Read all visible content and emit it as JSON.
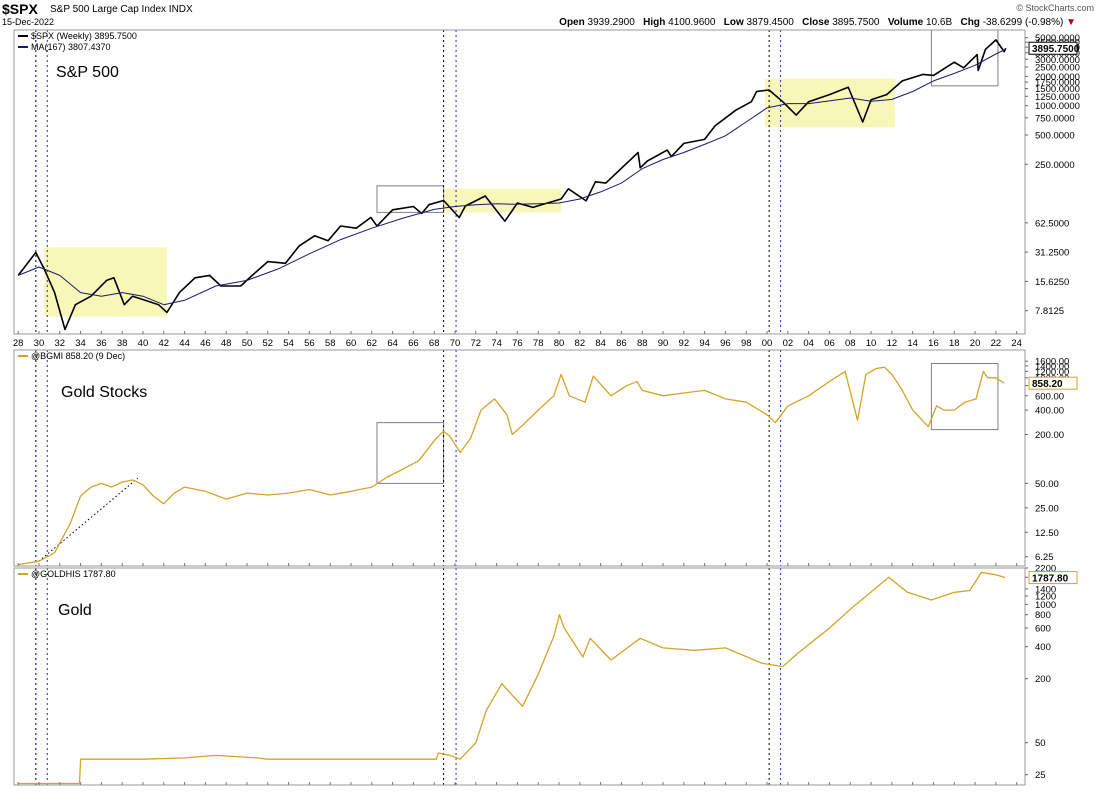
{
  "header": {
    "symbol": "$SPX",
    "name": "S&P 500 Large Cap Index",
    "exchange": "INDX",
    "date": "15-Dec-2022",
    "brand": "© StockCharts.com",
    "open_label": "Open",
    "open": "3939.2900",
    "high_label": "High",
    "high": "4100.9600",
    "low_label": "Low",
    "low": "3879.4500",
    "close_label": "Close",
    "close": "3895.7500",
    "volume_label": "Volume",
    "volume": "10.6B",
    "chg_label": "Chg",
    "chg": "-38.6299 (-0.98%)",
    "chg_arrow": "▼"
  },
  "colors": {
    "spx": "#000000",
    "ma": "#1a1a6e",
    "gold": "#d4a32a",
    "highlight": "#f6f6b0",
    "box": "#808080",
    "vline_black": "#000000",
    "vline_blue": "#2030c0"
  },
  "chart_data": [
    {
      "type": "line",
      "panel": "spx",
      "title": "S&P 500",
      "legend": [
        "$SPX (Weekly) 3895.7500",
        "MA(167) 3807.4370"
      ],
      "scale": "log",
      "ylim": [
        4.5,
        6000
      ],
      "yticks": [
        5000,
        4500,
        4000,
        3500,
        3000,
        2500,
        2000,
        1750,
        1500,
        1250,
        1000,
        750,
        500,
        250,
        62.5,
        31.25,
        15.625,
        7.8125
      ],
      "ytick_labels": [
        "5000.0000",
        "4500.0000",
        "4000.0000",
        "3500.0000",
        "3000.0000",
        "2500.0000",
        "2000.0000",
        "1750.0000",
        "1500.0000",
        "1250.0000",
        "1000.0000",
        "750.0000",
        "500.0000",
        "250.0000",
        "62.5000",
        "31.2500",
        "15.6250",
        "7.8125"
      ],
      "last_value": "3895.7500",
      "series": [
        {
          "name": "$SPX (Weekly)",
          "x": [
            1928,
            1929.7,
            1930.5,
            1931.5,
            1932.5,
            1933.5,
            1935,
            1936.5,
            1937.2,
            1938.2,
            1939,
            1940.2,
            1941.5,
            1942.3,
            1943.5,
            1945,
            1946.4,
            1947.5,
            1949.4,
            1950.5,
            1952,
            1953.7,
            1955,
            1956.5,
            1957.8,
            1959,
            1960.5,
            1961.9,
            1962.5,
            1964,
            1966,
            1966.8,
            1967.5,
            1968.9,
            1970.4,
            1971,
            1972.9,
            1974.8,
            1976,
            1977.5,
            1978.2,
            1980.2,
            1980.9,
            1982.6,
            1983.5,
            1984.5,
            1987.6,
            1987.8,
            1988.5,
            1990.4,
            1990.8,
            1992,
            1994,
            1995,
            1997,
            1998.5,
            1999,
            2000.2,
            2001.5,
            2002.8,
            2004,
            2006,
            2007.8,
            2009.2,
            2010,
            2011.5,
            2013,
            2015,
            2016,
            2018,
            2018.9,
            2020.2,
            2020.3,
            2021,
            2022,
            2022.8,
            2022.95
          ],
          "values": [
            18,
            31,
            21,
            12,
            5,
            9,
            11,
            16,
            17,
            9,
            11,
            10,
            9,
            7.5,
            12,
            17,
            18,
            14,
            14,
            18,
            25,
            24,
            36,
            46,
            41,
            58,
            55,
            71,
            58,
            85,
            92,
            78,
            96,
            106,
            71,
            93,
            118,
            65,
            100,
            90,
            95,
            110,
            140,
            105,
            165,
            160,
            330,
            230,
            270,
            350,
            300,
            410,
            450,
            620,
            900,
            1100,
            1400,
            1450,
            1100,
            800,
            1100,
            1300,
            1550,
            680,
            1150,
            1300,
            1800,
            2100,
            2050,
            2800,
            2450,
            3350,
            2300,
            3800,
            4750,
            3600,
            3896
          ]
        },
        {
          "name": "MA(167)",
          "x": [
            1928,
            1930,
            1932,
            1934,
            1936,
            1938,
            1940,
            1942,
            1944,
            1947,
            1950,
            1953,
            1956,
            1959,
            1962,
            1965,
            1968,
            1970,
            1972,
            1974,
            1976,
            1978,
            1980,
            1982,
            1984,
            1986,
            1988,
            1990,
            1992,
            1994,
            1996,
            1998,
            2000,
            2002,
            2004,
            2006,
            2008,
            2010,
            2012,
            2014,
            2016,
            2018,
            2020,
            2022,
            2022.95
          ],
          "values": [
            18,
            22,
            18,
            12,
            11,
            12,
            11,
            9,
            10,
            14,
            16,
            21,
            30,
            42,
            55,
            70,
            86,
            92,
            96,
            98,
            97,
            98,
            100,
            110,
            130,
            160,
            225,
            280,
            330,
            400,
            490,
            680,
            950,
            1050,
            1050,
            1120,
            1200,
            1110,
            1160,
            1400,
            1800,
            2150,
            2600,
            3400,
            3807
          ]
        }
      ],
      "highlights": [
        {
          "x": [
            1930.5,
            1942.3
          ],
          "y": [
            6.8,
            35
          ],
          "style": "yellow"
        },
        {
          "x": [
            1968.9,
            1980.2
          ],
          "y": [
            80,
            140
          ],
          "style": "yellow"
        },
        {
          "x": [
            1999.8,
            2012.3
          ],
          "y": [
            600,
            1900
          ],
          "style": "yellow"
        },
        {
          "x": [
            1962.5,
            1968.9
          ],
          "y": [
            80,
            150
          ],
          "style": "box"
        },
        {
          "x": [
            2015.8,
            2022.2
          ],
          "y": [
            1600,
            6000
          ],
          "style": "box"
        }
      ]
    },
    {
      "type": "line",
      "panel": "gold_stocks",
      "title": "Gold Stocks",
      "legend": [
        "@BGMI 858.20 (9 Dec)"
      ],
      "scale": "log",
      "ylim": [
        4.8,
        2200
      ],
      "yticks": [
        1600,
        1400,
        1200,
        1000,
        800,
        600,
        400,
        200,
        50,
        25,
        12.5,
        6.25
      ],
      "ytick_labels": [
        "1600.00",
        "1400.00",
        "1200.00",
        "1000.00",
        "800.00",
        "600.00",
        "400.00",
        "200.00",
        "50.00",
        "25.00",
        "12.50",
        "6.25"
      ],
      "last_value": "858.20",
      "series": [
        {
          "name": "@BGMI",
          "x": [
            1928,
            1930,
            1931.5,
            1933,
            1934,
            1935,
            1936,
            1937,
            1938,
            1939,
            1940,
            1941,
            1942,
            1943,
            1944,
            1946,
            1948,
            1950,
            1952,
            1954,
            1956,
            1958,
            1960,
            1962,
            1963.5,
            1965,
            1966.5,
            1968.2,
            1968.9,
            1969.5,
            1970.5,
            1971.5,
            1972.5,
            1973.8,
            1975,
            1975.5,
            1976.5,
            1978,
            1979.5,
            1980.2,
            1981,
            1982.5,
            1983.3,
            1985,
            1986.5,
            1987.5,
            1988,
            1990,
            1992,
            1994,
            1996,
            1998,
            2000,
            2000.8,
            2002,
            2004,
            2006,
            2007.5,
            2008.7,
            2009.5,
            2010.5,
            2011.3,
            2012,
            2013,
            2014,
            2015.5,
            2016.3,
            2017,
            2018,
            2019,
            2020.1,
            2020.8,
            2021.2,
            2022,
            2022.8
          ],
          "values": [
            5,
            5.5,
            7,
            16,
            35,
            45,
            50,
            45,
            52,
            55,
            48,
            35,
            28,
            38,
            45,
            40,
            32,
            38,
            36,
            38,
            42,
            36,
            40,
            45,
            60,
            75,
            95,
            180,
            220,
            190,
            120,
            180,
            400,
            550,
            350,
            200,
            260,
            400,
            600,
            1100,
            600,
            500,
            1050,
            600,
            800,
            900,
            700,
            600,
            650,
            700,
            550,
            500,
            350,
            280,
            450,
            600,
            900,
            1200,
            300,
            1100,
            1300,
            1350,
            1100,
            700,
            400,
            250,
            450,
            400,
            400,
            500,
            550,
            1200,
            1000,
            1000,
            858
          ]
        }
      ],
      "trendlines": [
        {
          "x": [
            1930,
            1939.5
          ],
          "y": [
            5.5,
            58
          ],
          "style": "dotted"
        }
      ],
      "highlights": [
        {
          "x": [
            1962.5,
            1968.9
          ],
          "y": [
            50,
            280
          ],
          "style": "box"
        },
        {
          "x": [
            2015.8,
            2022.2
          ],
          "y": [
            230,
            1500
          ],
          "style": "box"
        }
      ]
    },
    {
      "type": "line",
      "panel": "gold",
      "title": "Gold",
      "legend": [
        "@GOLDHIS 1787.80"
      ],
      "scale": "log",
      "ylim": [
        20,
        2200
      ],
      "yticks": [
        2200,
        1800,
        1400,
        1200,
        1000,
        800,
        600,
        400,
        200,
        50,
        25
      ],
      "ytick_labels": [
        "2200",
        "1800",
        "1400",
        "1200",
        "1000",
        "800",
        "600",
        "400",
        "200",
        "50",
        "25"
      ],
      "last_value": "1787.80",
      "series": [
        {
          "name": "@GOLDHIS",
          "x": [
            1928,
            1933.9,
            1934,
            1935,
            1940,
            1944,
            1947,
            1951,
            1952,
            1960,
            1968.2,
            1968.4,
            1969.5,
            1970.5,
            1972,
            1973,
            1974.5,
            1975.5,
            1976.5,
            1978,
            1979.5,
            1980.05,
            1980.5,
            1982.3,
            1983,
            1985,
            1987.8,
            1990,
            1993,
            1996,
            1999.5,
            2001.5,
            2003,
            2006,
            2008,
            2011.7,
            2013.5,
            2015.8,
            2018,
            2019.5,
            2020.6,
            2022,
            2022.9
          ],
          "values": [
            20.67,
            20.67,
            35,
            35,
            35,
            36,
            38,
            36,
            35,
            35,
            35,
            40,
            38,
            35,
            50,
            100,
            180,
            140,
            110,
            220,
            500,
            800,
            600,
            320,
            480,
            300,
            480,
            390,
            370,
            390,
            280,
            260,
            350,
            600,
            900,
            1800,
            1300,
            1100,
            1300,
            1350,
            2000,
            1900,
            1788
          ]
        }
      ]
    }
  ],
  "x_axis": {
    "ticks": [
      1928,
      1930,
      1932,
      1934,
      1936,
      1938,
      1940,
      1942,
      1944,
      1946,
      1948,
      1950,
      1952,
      1954,
      1956,
      1958,
      1960,
      1962,
      1964,
      1966,
      1968,
      1970,
      1972,
      1974,
      1976,
      1978,
      1980,
      1982,
      1984,
      1986,
      1988,
      1990,
      1992,
      1994,
      1996,
      1998,
      2000,
      2002,
      2004,
      2006,
      2008,
      2010,
      2012,
      2014,
      2016,
      2018,
      2020,
      2022,
      2024
    ],
    "tick_labels": [
      "28",
      "30",
      "32",
      "34",
      "36",
      "38",
      "40",
      "42",
      "44",
      "46",
      "48",
      "50",
      "52",
      "54",
      "56",
      "58",
      "60",
      "62",
      "64",
      "66",
      "68",
      "70",
      "72",
      "74",
      "76",
      "78",
      "80",
      "82",
      "84",
      "86",
      "88",
      "90",
      "92",
      "94",
      "96",
      "98",
      "00",
      "02",
      "04",
      "06",
      "08",
      "10",
      "12",
      "14",
      "16",
      "18",
      "20",
      "22",
      "24"
    ],
    "range": [
      1927.6,
      2024.8
    ]
  },
  "vlines": [
    {
      "x": 1929.7,
      "style": "black"
    },
    {
      "x": 1930.8,
      "style": "blue"
    },
    {
      "x": 1968.9,
      "style": "black"
    },
    {
      "x": 1970.1,
      "style": "blue"
    },
    {
      "x": 2000.2,
      "style": "black"
    },
    {
      "x": 2001.3,
      "style": "blue"
    }
  ]
}
